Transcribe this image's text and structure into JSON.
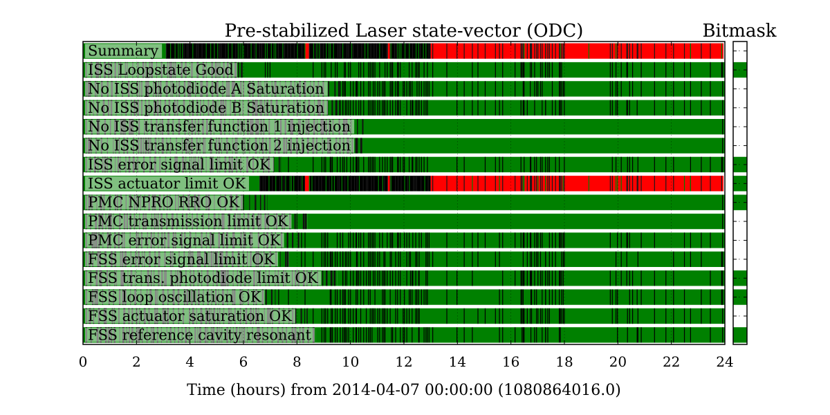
{
  "chart_data": {
    "type": "state-vector",
    "title": "Pre-stabilized Laser state-vector (ODC)",
    "bitmask_title": "Bitmask",
    "xlabel": "Time (hours) from 2014-04-07 00:00:00 (1080864016.0)",
    "xlim": [
      0,
      24
    ],
    "xticks": [
      "0",
      "2",
      "4",
      "6",
      "8",
      "10",
      "12",
      "14",
      "16",
      "18",
      "20",
      "22",
      "24"
    ],
    "grid": true,
    "colors": {
      "active": "#008000",
      "inactive": "#000000",
      "failed": "#ff0000"
    },
    "rows": [
      {
        "label": "Summary",
        "kind": "summary",
        "bitmask": "off",
        "segments": [
          {
            "start": 0,
            "end": 3.1,
            "state": "active"
          },
          {
            "start": 3.1,
            "end": 8.3,
            "state": "inactive"
          },
          {
            "start": 8.3,
            "end": 8.45,
            "state": "failed"
          },
          {
            "start": 8.45,
            "end": 11.4,
            "state": "inactive"
          },
          {
            "start": 11.4,
            "end": 11.5,
            "state": "failed"
          },
          {
            "start": 11.5,
            "end": 13.0,
            "state": "inactive"
          },
          {
            "start": 13.0,
            "end": 23.95,
            "state": "failed"
          }
        ]
      },
      {
        "label": "ISS Loopstate Good",
        "kind": "flag",
        "bitmask": "on",
        "ok_from": 6.0
      },
      {
        "label": "No ISS photodiode A Saturation",
        "kind": "flag",
        "bitmask": "off",
        "ok_from": 9.6
      },
      {
        "label": "No ISS photodiode B Saturation",
        "kind": "flag",
        "bitmask": "off",
        "ok_from": 9.6
      },
      {
        "label": "No ISS transfer function 1 injection",
        "kind": "flag",
        "bitmask": "off",
        "ok_from": 10.5
      },
      {
        "label": "No ISS transfer function 2 injection",
        "kind": "flag",
        "bitmask": "off",
        "ok_from": 10.5
      },
      {
        "label": "ISS error signal limit OK",
        "kind": "flag",
        "bitmask": "on",
        "ok_from": 7.4
      },
      {
        "label": "ISS actuator limit OK",
        "kind": "summary",
        "bitmask": "on",
        "segments": [
          {
            "start": 0,
            "end": 6.6,
            "state": "active"
          },
          {
            "start": 6.6,
            "end": 8.3,
            "state": "inactive"
          },
          {
            "start": 8.3,
            "end": 8.45,
            "state": "failed"
          },
          {
            "start": 8.45,
            "end": 11.4,
            "state": "inactive"
          },
          {
            "start": 11.4,
            "end": 11.5,
            "state": "failed"
          },
          {
            "start": 11.5,
            "end": 13.0,
            "state": "inactive"
          },
          {
            "start": 13.0,
            "end": 23.95,
            "state": "failed"
          }
        ]
      },
      {
        "label": "PMC NPRO RRO OK",
        "kind": "flag",
        "bitmask": "on",
        "ok_from": 6.9
      },
      {
        "label": "PMC transmission limit OK",
        "kind": "flag",
        "bitmask": "off",
        "ok_from": 8.4
      },
      {
        "label": "PMC error signal limit OK",
        "kind": "flag",
        "bitmask": "off",
        "ok_from": 8.1
      },
      {
        "label": "FSS error signal limit OK",
        "kind": "flag",
        "bitmask": "off",
        "ok_from": 7.7
      },
      {
        "label": "FSS trans. photodiode limit OK",
        "kind": "flag",
        "bitmask": "on",
        "ok_from": 9.5
      },
      {
        "label": "FSS loop oscillation OK",
        "kind": "flag",
        "bitmask": "on",
        "ok_from": 7.2
      },
      {
        "label": "FSS actuator saturation OK",
        "kind": "flag",
        "bitmask": "off",
        "ok_from": 8.4
      },
      {
        "label": "FSS reference cavity resonant",
        "kind": "flag",
        "bitmask": "on",
        "ok_from": 8.7
      }
    ]
  }
}
